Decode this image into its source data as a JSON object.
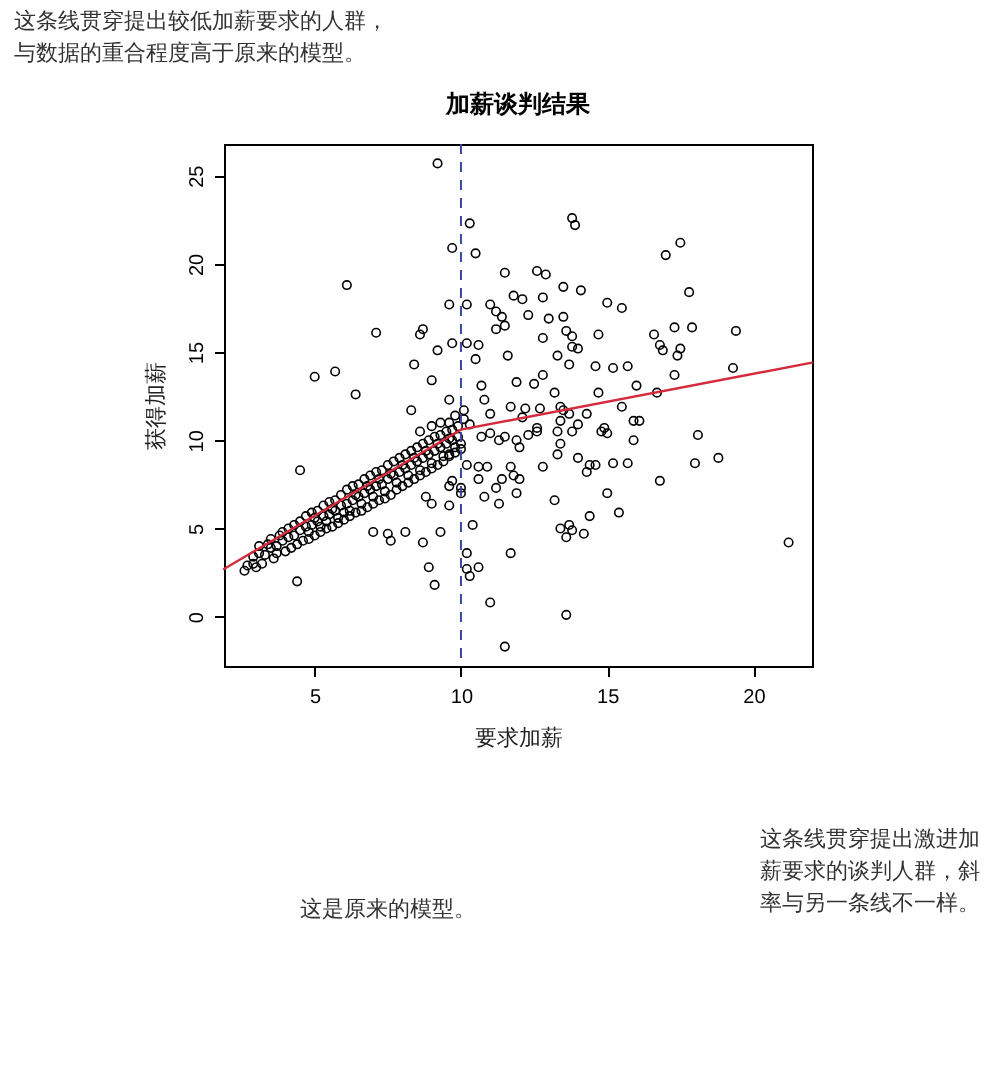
{
  "chart_data": {
    "type": "scatter",
    "title": "加薪谈判结果",
    "xlabel": "要求加薪",
    "ylabel": "获得加薪",
    "xlim": [
      1.9,
      22.0
    ],
    "ylim": [
      -2.8,
      26.8
    ],
    "xticks": [
      5,
      10,
      15,
      20
    ],
    "yticks": [
      0,
      5,
      10,
      15,
      20,
      25
    ],
    "grid": false,
    "series": [
      {
        "color": "#000000",
        "marker": "circle",
        "x": [
          2.6,
          2.9,
          2.7,
          2.9,
          3.0,
          3.1,
          3.2,
          3.1,
          3.3,
          3.4,
          3.5,
          3.6,
          3.5,
          3.7,
          3.8,
          3.7,
          3.9,
          4.0,
          3.9,
          4.1,
          4.2,
          4.1,
          4.3,
          4.4,
          4.3,
          4.5,
          4.6,
          4.5,
          4.7,
          4.8,
          4.7,
          4.8,
          4.9,
          5.0,
          4.9,
          5.0,
          5.1,
          5.2,
          5.1,
          5.2,
          5.3,
          5.4,
          5.3,
          5.4,
          5.5,
          5.6,
          5.5,
          5.6,
          5.7,
          5.8,
          5.7,
          5.8,
          5.9,
          6.0,
          5.9,
          6.0,
          6.1,
          6.2,
          6.1,
          6.2,
          6.3,
          6.4,
          6.3,
          6.4,
          6.5,
          6.6,
          6.5,
          6.6,
          6.7,
          6.8,
          6.7,
          6.8,
          6.9,
          7.0,
          6.9,
          7.0,
          7.1,
          7.2,
          7.1,
          7.2,
          7.3,
          7.4,
          7.3,
          7.4,
          7.5,
          7.6,
          7.5,
          7.6,
          7.7,
          7.8,
          7.7,
          7.8,
          7.9,
          8.0,
          7.9,
          8.0,
          8.1,
          8.2,
          8.1,
          8.2,
          8.3,
          8.4,
          8.3,
          8.4,
          8.5,
          8.6,
          8.5,
          8.6,
          8.7,
          8.8,
          8.7,
          8.8,
          8.9,
          9.0,
          8.9,
          9.0,
          9.1,
          9.2,
          9.1,
          9.2,
          9.3,
          9.4,
          9.3,
          9.4,
          9.5,
          9.6,
          9.5,
          9.6,
          9.7,
          9.8,
          9.7,
          9.8,
          9.9,
          10.0,
          9.9,
          10.0,
          9.0,
          9.6,
          10.1,
          10.3,
          9.8,
          8.6,
          9.3,
          9.2,
          10.3,
          13.8,
          13.9,
          9.7,
          10.5,
          17.0,
          17.5,
          6.1,
          11.5,
          12.6,
          12.9,
          13.5,
          14.1,
          17.8,
          11.8,
          12.1,
          12.8,
          9.6,
          10.2,
          11.0,
          11.2,
          11.4,
          12.3,
          13.0,
          13.5,
          15.0,
          15.5,
          11.2,
          11.5,
          13.6,
          13.8,
          14.7,
          7.1,
          8.6,
          8.7,
          16.6,
          16.8,
          17.3,
          17.9,
          10.6,
          9.7,
          10.2,
          9.2,
          12.8,
          13.3,
          13.8,
          14.0,
          11.6,
          10.5,
          8.4,
          17.4,
          16.9,
          5.0,
          5.7,
          6.4,
          9.0,
          12.8,
          11.9,
          12.5,
          14.6,
          15.2,
          15.7,
          17.3,
          13.7,
          10.7,
          13.2,
          14.7,
          16.0,
          9.6,
          8.3,
          10.8,
          11.7,
          12.7,
          13.5,
          14.3,
          15.5,
          15.9,
          11.0,
          12.1,
          10.1,
          12.6,
          14.9,
          18.1,
          19.4,
          17.5,
          19.3,
          16.7,
          16.1,
          15.0,
          15.9,
          18.8,
          18.0,
          15.2,
          15.7,
          16.8,
          15.0,
          15.4,
          21.2,
          13.4,
          13.3,
          13.8,
          14.0,
          14.8,
          14.4,
          14.6,
          13.3,
          14.0,
          14.3,
          12.8,
          13.2,
          14.4,
          13.4,
          13.7,
          13.8,
          13.6,
          14.2,
          13.6,
          11.5,
          11.0,
          10.2,
          10.3,
          10.6,
          10.2,
          11.7,
          10.4,
          8.9,
          9.1,
          4.4,
          10.0,
          10.0,
          9.6,
          9.3,
          8.7,
          7.0,
          7.5,
          7.6,
          8.1,
          4.5,
          10.8,
          11.3,
          11.2,
          11.9,
          10.6,
          11.4,
          11.8,
          12.0,
          10.6,
          10.9,
          10.2,
          11.7,
          9.6,
          9.7,
          8.8,
          9.0,
          9.6,
          12.6,
          12.3,
          11.9,
          12.0,
          11.3,
          11.5,
          10.7,
          11.0,
          13.4,
          13.7,
          13.4,
          12.2
        ],
        "values": [
          2.6,
          3.0,
          2.9,
          3.4,
          2.8,
          3.6,
          3.0,
          4.0,
          3.5,
          4.1,
          3.9,
          3.3,
          4.4,
          4.0,
          4.6,
          3.6,
          4.3,
          3.7,
          4.8,
          4.5,
          3.9,
          5.0,
          4.6,
          4.1,
          5.2,
          4.9,
          4.3,
          5.4,
          5.1,
          4.4,
          5.7,
          4.8,
          5.2,
          4.6,
          5.9,
          5.6,
          5.4,
          4.8,
          6.0,
          5.1,
          5.7,
          5.0,
          6.3,
          5.4,
          5.8,
          5.1,
          6.5,
          6.1,
          6.0,
          5.3,
          6.6,
          5.6,
          6.3,
          5.5,
          6.9,
          5.9,
          6.4,
          5.7,
          7.2,
          6.0,
          6.6,
          5.9,
          7.4,
          6.9,
          6.8,
          6.0,
          7.5,
          6.4,
          7.0,
          6.2,
          7.8,
          7.4,
          7.2,
          6.4,
          8.0,
          6.8,
          7.4,
          6.6,
          8.2,
          7.8,
          7.5,
          6.7,
          8.3,
          7.1,
          7.8,
          6.9,
          8.6,
          8.1,
          8.0,
          7.2,
          8.8,
          7.6,
          8.2,
          7.4,
          9.0,
          8.6,
          8.4,
          7.6,
          9.2,
          8.0,
          8.6,
          7.8,
          9.4,
          9.0,
          8.8,
          8.0,
          9.6,
          8.3,
          9.0,
          8.2,
          9.8,
          9.4,
          9.2,
          8.4,
          10.0,
          8.7,
          9.4,
          8.6,
          10.2,
          9.8,
          9.6,
          8.8,
          10.3,
          9.1,
          9.8,
          9.1,
          10.5,
          10.1,
          10.0,
          9.3,
          10.6,
          9.6,
          10.2,
          9.5,
          10.8,
          9.8,
          10.8,
          11.0,
          11.2,
          10.9,
          11.4,
          10.5,
          11.0,
          25.7,
          22.3,
          22.6,
          22.2,
          20.9,
          20.6,
          20.5,
          21.2,
          18.8,
          19.5,
          19.6,
          19.4,
          18.7,
          18.5,
          18.4,
          18.2,
          18.0,
          18.1,
          17.7,
          17.7,
          17.7,
          17.3,
          17.0,
          17.1,
          16.9,
          17.0,
          17.8,
          17.5,
          16.3,
          16.5,
          16.2,
          15.9,
          16.0,
          16.1,
          16.0,
          16.3,
          16.0,
          15.4,
          16.4,
          16.4,
          15.4,
          15.5,
          15.5,
          15.1,
          15.8,
          14.8,
          15.3,
          15.2,
          14.8,
          14.6,
          14.3,
          14.8,
          15.1,
          13.6,
          13.9,
          12.6,
          13.4,
          13.7,
          13.3,
          13.2,
          14.2,
          14.1,
          14.2,
          13.7,
          14.3,
          13.1,
          12.7,
          12.7,
          13.1,
          12.3,
          11.7,
          12.3,
          11.9,
          11.8,
          11.7,
          11.5,
          11.9,
          11.1,
          11.5,
          11.3,
          11.7,
          10.7,
          10.7,
          10.3,
          16.2,
          15.2,
          14.1,
          12.7,
          11.1,
          10.4,
          10.0,
          9.0,
          8.7,
          8.7,
          8.7,
          7.7,
          7.0,
          5.9,
          4.2,
          9.8,
          10.5,
          10.5,
          10.9,
          10.5,
          8.6,
          8.6,
          9.2,
          9.0,
          8.2,
          8.5,
          6.6,
          5.7,
          5.0,
          5.2,
          4.9,
          4.5,
          4.7,
          0.1,
          -1.7,
          0.8,
          2.7,
          2.3,
          2.8,
          3.6,
          3.6,
          5.2,
          2.8,
          1.8,
          2.0,
          7.3,
          7.0,
          6.3,
          4.8,
          4.2,
          4.8,
          4.7,
          4.3,
          4.8,
          8.3,
          6.8,
          6.4,
          7.3,
          7.0,
          7.8,
          7.8,
          8.0,
          7.8,
          8.5,
          8.5,
          8.6,
          8.5,
          7.4,
          7.7,
          6.8,
          6.4,
          9.2,
          10.5,
          10.3,
          10.0,
          9.6,
          10.0,
          10.2,
          10.2,
          10.4,
          11.9,
          11.5,
          11.1,
          11.8
        ]
      },
      {
        "type": "line",
        "color": "#d42a3c",
        "x": [
          1.9,
          10.0,
          22.0
        ],
        "values": [
          2.7,
          10.6,
          14.4
        ]
      }
    ],
    "ref_lines": [
      {
        "axis": "x",
        "value": 10,
        "color": "#3b48a0",
        "line_style": "dashed"
      }
    ],
    "annotations": [
      "这条线贯穿提出较低加薪要求的人群，与数据的重合程度高于原来的模型。",
      "这条线贯穿提出激进加薪要求的谈判人群，斜率与另一条线不一样。",
      "这是原来的模型。"
    ]
  }
}
